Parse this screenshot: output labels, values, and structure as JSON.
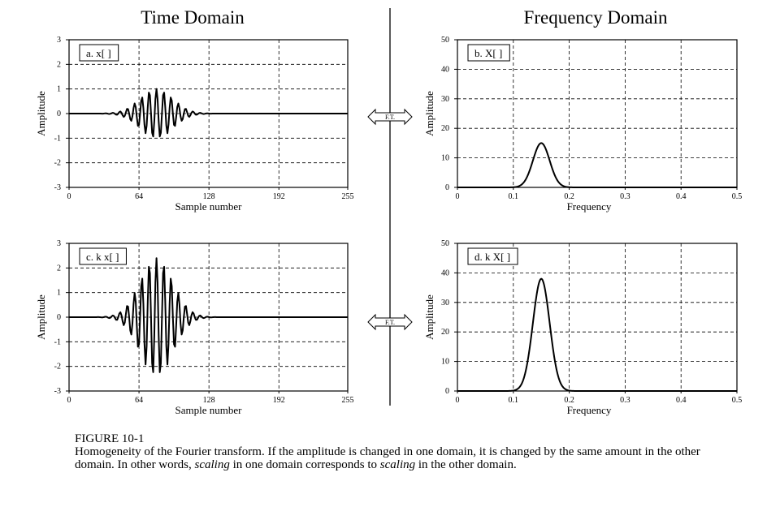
{
  "headings": {
    "time": "Time Domain",
    "frequency": "Frequency Domain"
  },
  "ft_label": "F.T.",
  "caption": {
    "label": "FIGURE 10-1",
    "part1": "Homogeneity of the Fourier transform.  If the amplitude is changed in one domain, it is changed by the same amount in the other domain.  In other words, ",
    "em1": "scaling",
    "part2": " in one domain corresponds to ",
    "em2": "scaling",
    "part3": " in the other domain."
  },
  "chart_data": [
    {
      "id": "a",
      "type": "line",
      "title": "a.  x[ ]",
      "xlabel": "Sample number",
      "ylabel": "Amplitude",
      "xlim": [
        0,
        255
      ],
      "ylim": [
        -3,
        3
      ],
      "xticks": [
        0,
        64,
        128,
        192,
        255
      ],
      "yticks": [
        -3,
        -2,
        -1,
        0,
        1,
        2,
        3
      ],
      "grid": true,
      "signal": {
        "kind": "modulated_sine",
        "center": 80,
        "width": 15,
        "peak": 1.0,
        "cycles_per_sample": 0.15,
        "samples": 256
      }
    },
    {
      "id": "b",
      "type": "line",
      "title": "b.  X[ ]",
      "xlabel": "Frequency",
      "ylabel": "Amplitude",
      "xlim": [
        0,
        0.5
      ],
      "ylim": [
        0,
        50
      ],
      "xticks": [
        0,
        0.1,
        0.2,
        0.3,
        0.4,
        0.5
      ],
      "yticks": [
        0,
        10,
        20,
        30,
        40,
        50
      ],
      "grid": true,
      "signal": {
        "kind": "gaussian",
        "center": 0.15,
        "width": 0.015,
        "peak": 15
      }
    },
    {
      "id": "c",
      "type": "line",
      "title": "c.  k x[ ]",
      "xlabel": "Sample number",
      "ylabel": "Amplitude",
      "xlim": [
        0,
        255
      ],
      "ylim": [
        -3,
        3
      ],
      "xticks": [
        0,
        64,
        128,
        192,
        255
      ],
      "yticks": [
        -3,
        -2,
        -1,
        0,
        1,
        2,
        3
      ],
      "grid": true,
      "signal": {
        "kind": "modulated_sine",
        "center": 80,
        "width": 15,
        "peak": 2.4,
        "cycles_per_sample": 0.15,
        "samples": 256
      }
    },
    {
      "id": "d",
      "type": "line",
      "title": "d.  k X[ ]",
      "xlabel": "Frequency",
      "ylabel": "Amplitude",
      "xlim": [
        0,
        0.5
      ],
      "ylim": [
        0,
        50
      ],
      "xticks": [
        0,
        0.1,
        0.2,
        0.3,
        0.4,
        0.5
      ],
      "yticks": [
        0,
        10,
        20,
        30,
        40,
        50
      ],
      "grid": true,
      "signal": {
        "kind": "gaussian",
        "center": 0.15,
        "width": 0.015,
        "peak": 38
      }
    }
  ]
}
